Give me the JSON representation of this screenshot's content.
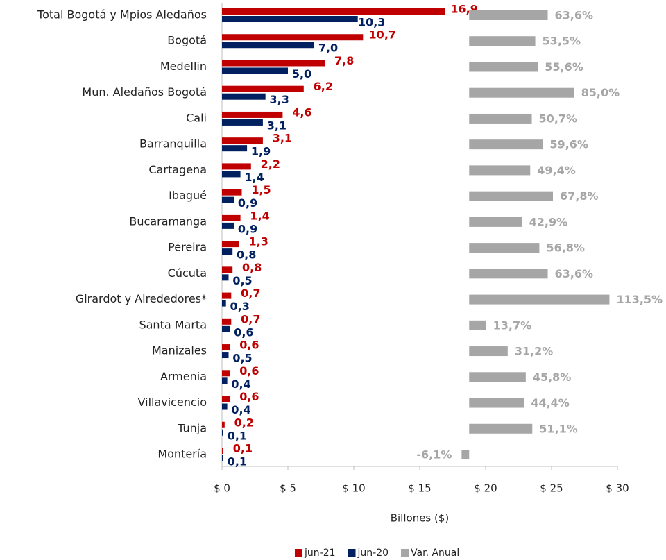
{
  "chart_data": {
    "type": "hbar",
    "categories": [
      "Total Bogotá y Mpios Aledaños",
      "Bogotá",
      "Medellin",
      "Mun.  Aledaños Bogotá",
      "Cali",
      "Barranquilla",
      "Cartagena",
      "Ibagué",
      "Bucaramanga",
      "Pereira",
      "Cúcuta",
      "Girardot y Alrededores*",
      "Santa Marta",
      "Manizales",
      "Armenia",
      "Villavicencio",
      "Tunja",
      "Montería"
    ],
    "series": [
      {
        "name": "jun-21",
        "color": "#c00000",
        "values": [
          16.9,
          10.7,
          7.8,
          6.2,
          4.6,
          3.1,
          2.2,
          1.5,
          1.4,
          1.3,
          0.8,
          0.7,
          0.7,
          0.6,
          0.6,
          0.6,
          0.2,
          0.1
        ],
        "value_labels": [
          "16,9",
          "10,7",
          "7,8",
          "6,2",
          "4,6",
          "3,1",
          "2,2",
          "1,5",
          "1,4",
          "1,3",
          "0,8",
          "0,7",
          "0,7",
          "0,6",
          "0,6",
          "0,6",
          "0,2",
          "0,1"
        ]
      },
      {
        "name": "jun-20",
        "color": "#002060",
        "values": [
          10.3,
          7.0,
          5.0,
          3.3,
          3.1,
          1.9,
          1.4,
          0.9,
          0.9,
          0.8,
          0.5,
          0.3,
          0.6,
          0.5,
          0.4,
          0.4,
          0.1,
          0.1
        ],
        "value_labels": [
          "10,3",
          "7,0",
          "5,0",
          "3,3",
          "3,1",
          "1,9",
          "1,4",
          "0,9",
          "0,9",
          "0,8",
          "0,5",
          "0,3",
          "0,6",
          "0,5",
          "0,4",
          "0,4",
          "0,1",
          "0,1"
        ]
      },
      {
        "name": "Var. Anual",
        "color": "#a6a6a6",
        "axis": "x2",
        "values": [
          63.6,
          53.5,
          55.6,
          85.0,
          50.7,
          59.6,
          49.4,
          67.8,
          42.9,
          56.8,
          63.6,
          113.5,
          13.7,
          31.2,
          45.8,
          44.4,
          51.1,
          -6.1
        ],
        "value_labels": [
          "63,6%",
          "53,5%",
          "55,6%",
          "85,0%",
          "50,7%",
          "59,6%",
          "49,4%",
          "67,8%",
          "42,9%",
          "56,8%",
          "63,6%",
          "113,5%",
          "13,7%",
          "31,2%",
          "45,8%",
          "44,4%",
          "51,1%",
          "-6,1%"
        ]
      }
    ],
    "xlabel": "Billones ($)",
    "xlim": [
      0,
      30
    ],
    "xticks": [
      {
        "value": 0,
        "label": "$ 0"
      },
      {
        "value": 5,
        "label": "$ 5"
      },
      {
        "value": 10,
        "label": "$ 10"
      },
      {
        "value": 15,
        "label": "$ 15"
      },
      {
        "value": 20,
        "label": "$ 20"
      },
      {
        "value": 25,
        "label": "$ 25"
      },
      {
        "value": 30,
        "label": "$ 30"
      }
    ],
    "x2lim": [
      -200,
      120
    ],
    "legend": "bottom"
  }
}
